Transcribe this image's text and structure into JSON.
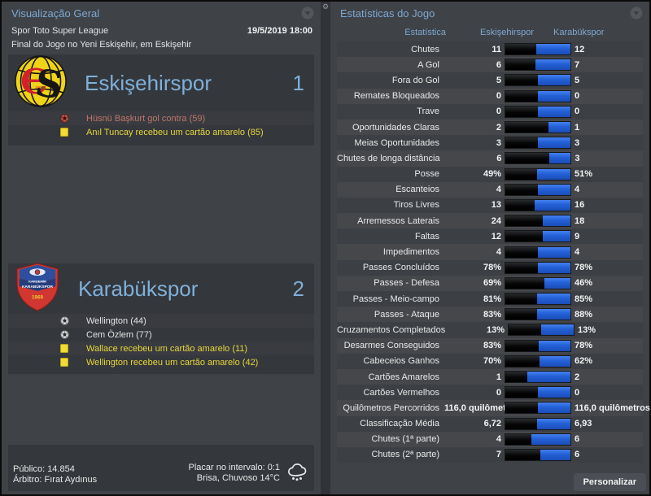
{
  "colors": {
    "accent_blue": "#7ea9d2",
    "team_name_blue": "#7fb0da",
    "bar_home_black": "#060607",
    "bar_away_blue": "#2360d6",
    "yellow_card_text": "#e8d73c",
    "own_goal_text": "#c0756a"
  },
  "left_panel": {
    "title": "Visualização Geral",
    "competition": "Spor Toto Super League",
    "datetime": "19/5/2019 18:00",
    "status_line": "Final do Jogo no Yeni Eskişehir, em Eskişehir",
    "home": {
      "name": "Eskişehirspor",
      "score": "1",
      "events": [
        {
          "type": "owngoal",
          "text": "Hüsnü Başkurt gol contra (59)"
        },
        {
          "type": "yellow",
          "text": "Anıl Tuncay recebeu um cartão amarelo (85)"
        }
      ]
    },
    "away": {
      "name": "Karabükspor",
      "score": "2",
      "events": [
        {
          "type": "goal",
          "text": "Wellington (44)"
        },
        {
          "type": "goal",
          "text": "Cem Özlem (77)"
        },
        {
          "type": "yellow",
          "text": "Wallace recebeu um cartão amarelo (11)"
        },
        {
          "type": "yellow",
          "text": "Wellington recebeu um cartão amarelo (42)"
        }
      ]
    },
    "footer": {
      "attendance": "Público: 14.854",
      "referee": "Árbitro: Fırat Aydınus",
      "halftime": "Placar no intervalo: 0:1",
      "weather": "Brisa, Chuvoso 14°C"
    }
  },
  "right_panel": {
    "title": "Estatísticas do Jogo",
    "columns": {
      "stat": "Estatística",
      "home": "Eskişehirspor",
      "away": "Karabükspor"
    },
    "button": "Personalizar",
    "rows": [
      {
        "label": "Chutes",
        "home": "11",
        "away": "12",
        "frac": 47.8
      },
      {
        "label": "A Gol",
        "home": "6",
        "away": "7",
        "frac": 46.2
      },
      {
        "label": "Fora do Gol",
        "home": "5",
        "away": "5",
        "frac": 50
      },
      {
        "label": "Remates Bloqueados",
        "home": "0",
        "away": "0",
        "frac": 50
      },
      {
        "label": "Trave",
        "home": "0",
        "away": "0",
        "frac": 50
      },
      {
        "label": "Oportunidades Claras",
        "home": "2",
        "away": "1",
        "frac": 66.7
      },
      {
        "label": "Meias Oportunidades",
        "home": "3",
        "away": "3",
        "frac": 50
      },
      {
        "label": "Chutes de longa distância",
        "home": "6",
        "away": "3",
        "frac": 66.7
      },
      {
        "label": "Posse",
        "home": "49%",
        "away": "51%",
        "frac": 49
      },
      {
        "label": "Escanteios",
        "home": "4",
        "away": "4",
        "frac": 50
      },
      {
        "label": "Tiros Livres",
        "home": "13",
        "away": "16",
        "frac": 44.8
      },
      {
        "label": "Arremessos Laterais",
        "home": "24",
        "away": "18",
        "frac": 57.1
      },
      {
        "label": "Faltas",
        "home": "12",
        "away": "9",
        "frac": 57.1
      },
      {
        "label": "Impedimentos",
        "home": "4",
        "away": "4",
        "frac": 50
      },
      {
        "label": "Passes Concluídos",
        "home": "78%",
        "away": "78%",
        "frac": 50
      },
      {
        "label": "Passes - Defesa",
        "home": "69%",
        "away": "46%",
        "frac": 60
      },
      {
        "label": "Passes - Meio-campo",
        "home": "81%",
        "away": "85%",
        "frac": 48.8
      },
      {
        "label": "Passes - Ataque",
        "home": "83%",
        "away": "88%",
        "frac": 48.5
      },
      {
        "label": "Cruzamentos Completados",
        "home": "13%",
        "away": "13%",
        "frac": 50
      },
      {
        "label": "Desarmes Conseguidos",
        "home": "83%",
        "away": "78%",
        "frac": 51.6
      },
      {
        "label": "Cabeceios Ganhos",
        "home": "70%",
        "away": "62%",
        "frac": 53
      },
      {
        "label": "Cartões Amarelos",
        "home": "1",
        "away": "2",
        "frac": 33.3
      },
      {
        "label": "Cartões Vermelhos",
        "home": "0",
        "away": "0",
        "frac": 50
      },
      {
        "label": "Quilômetros Percorridos",
        "home": "116,0 quilômetros",
        "away": "116,0 quilômetros",
        "frac": 50
      },
      {
        "label": "Classificação Média",
        "home": "6,72",
        "away": "6,93",
        "frac": 49.2
      },
      {
        "label": "Chutes (1ª parte)",
        "home": "4",
        "away": "6",
        "frac": 40
      },
      {
        "label": "Chutes (2ª parte)",
        "home": "7",
        "away": "6",
        "frac": 53.8
      }
    ]
  }
}
